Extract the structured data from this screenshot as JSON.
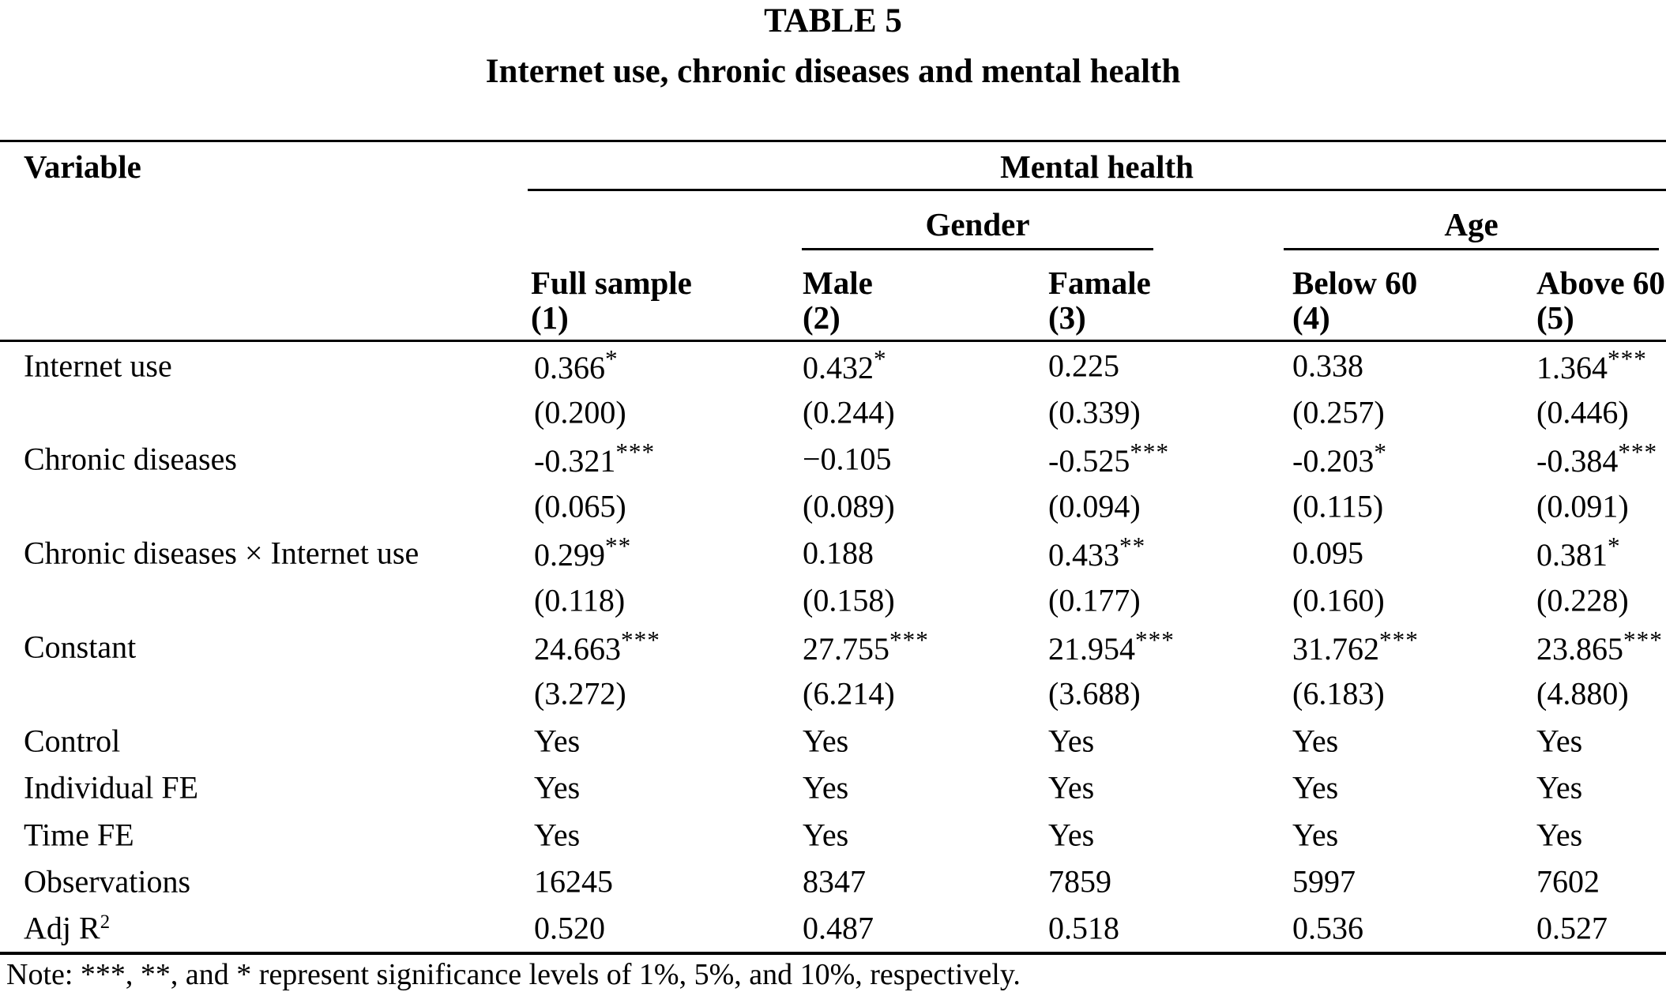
{
  "title": "TABLE 5",
  "subtitle": "Internet use, chronic diseases and mental health",
  "header": {
    "variable_label": "Variable",
    "group_label": "Mental health",
    "subgroups": [
      {
        "label": "Gender"
      },
      {
        "label": "Age"
      }
    ],
    "columns": [
      {
        "label": "Full sample",
        "number": "(1)"
      },
      {
        "label": "Male",
        "number": "(2)"
      },
      {
        "label": "Famale",
        "number": "(3)"
      },
      {
        "label": "Below 60",
        "number": "(4)"
      },
      {
        "label": "Above 60",
        "number": "(5)"
      }
    ]
  },
  "body": {
    "rows": [
      {
        "label": "Internet use",
        "cells": [
          "0.366*",
          "0.432*",
          "0.225",
          "0.338",
          "1.364***"
        ]
      },
      {
        "label": "",
        "cells": [
          "(0.200)",
          "(0.244)",
          "(0.339)",
          "(0.257)",
          "(0.446)"
        ]
      },
      {
        "label": "Chronic diseases",
        "cells": [
          "-0.321***",
          "−0.105",
          "-0.525***",
          "-0.203*",
          "-0.384***"
        ]
      },
      {
        "label": "",
        "cells": [
          "(0.065)",
          "(0.089)",
          "(0.094)",
          "(0.115)",
          "(0.091)"
        ]
      },
      {
        "label": "Chronic diseases × Internet use",
        "cells": [
          "0.299**",
          "0.188",
          "0.433**",
          "0.095",
          "0.381*"
        ]
      },
      {
        "label": "",
        "cells": [
          "(0.118)",
          "(0.158)",
          "(0.177)",
          "(0.160)",
          "(0.228)"
        ]
      },
      {
        "label": "Constant",
        "cells": [
          "24.663***",
          "27.755***",
          "21.954***",
          "31.762***",
          "23.865***"
        ]
      },
      {
        "label": "",
        "cells": [
          "(3.272)",
          "(6.214)",
          "(3.688)",
          "(6.183)",
          "(4.880)"
        ]
      },
      {
        "label": "Control",
        "cells": [
          "Yes",
          "Yes",
          "Yes",
          "Yes",
          "Yes"
        ]
      },
      {
        "label": "Individual FE",
        "cells": [
          "Yes",
          "Yes",
          "Yes",
          "Yes",
          "Yes"
        ]
      },
      {
        "label": "Time FE",
        "cells": [
          "Yes",
          "Yes",
          "Yes",
          "Yes",
          "Yes"
        ]
      },
      {
        "label": "Observations",
        "cells": [
          "16245",
          "8347",
          "7859",
          "5997",
          "7602"
        ]
      },
      {
        "label": "Adj R",
        "label_sup": "2",
        "cells": [
          "0.520",
          "0.487",
          "0.518",
          "0.536",
          "0.527"
        ]
      }
    ]
  },
  "note": "Note: ***, **, and * represent significance levels of 1%, 5%, and 10%, respectively.",
  "colors": {
    "text": "#000000",
    "background": "#ffffff",
    "rule": "#000000"
  }
}
